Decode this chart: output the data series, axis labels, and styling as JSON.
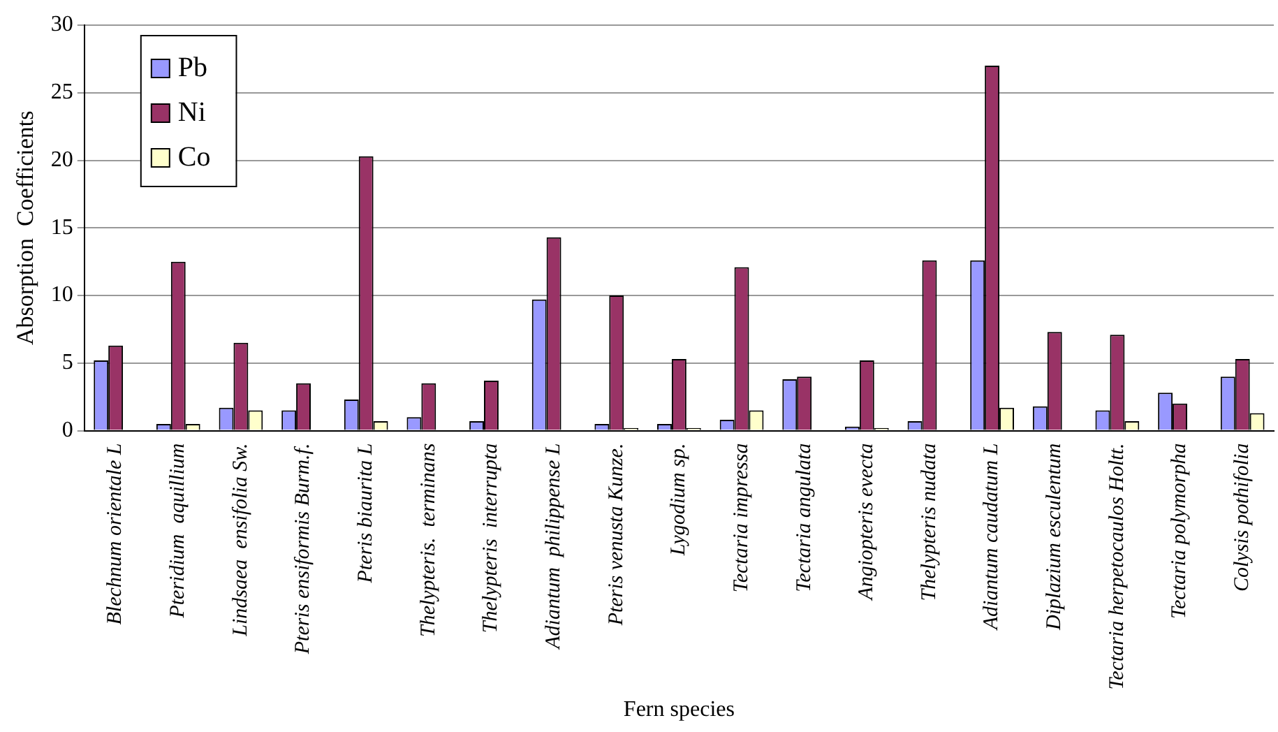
{
  "chart_data": {
    "type": "bar",
    "xlabel": "Fern species",
    "ylabel": "Absorption  Coefficients",
    "categories": [
      "Blechnum orientale L",
      "Pteridium  aquillium",
      "Lindsaea  ensifolia Sw.",
      "Pteris ensiformis Burm.f.",
      "Pteris biaurita L",
      "Thelypteris.  terminans",
      "Thelypteris  interrupta",
      "Adiantum  philippense L",
      "Pteris venusta Kunze.",
      "Lygodium sp.",
      "Tectaria impressa",
      "Tectaria angulata",
      "Angiopteris evecta",
      "Thelypteris nudata",
      "Adiantum caudatum L",
      "Diplazium esculentum",
      "Tectaria herpetocaulos Holtt.",
      "Tectaria polymorpha",
      "Colysis pothifolia"
    ],
    "series": [
      {
        "name": "Pb",
        "color": "#9999ff",
        "values": [
          5.2,
          0.5,
          1.7,
          1.5,
          2.3,
          1.0,
          0.7,
          9.7,
          0.5,
          0.5,
          0.8,
          3.8,
          0.3,
          0.7,
          12.6,
          1.8,
          1.5,
          2.8,
          4.0
        ]
      },
      {
        "name": "Ni",
        "color": "#993366",
        "values": [
          6.3,
          12.5,
          6.5,
          3.5,
          20.3,
          3.5,
          3.7,
          14.3,
          10.0,
          5.3,
          12.1,
          4.0,
          5.2,
          12.6,
          27.0,
          7.3,
          7.1,
          2.0,
          5.3
        ]
      },
      {
        "name": "Co",
        "color": "#ffffcc",
        "values": [
          0,
          0.5,
          1.5,
          0,
          0.7,
          0,
          0,
          0,
          0.2,
          0.2,
          1.5,
          0,
          0.2,
          0,
          1.7,
          0,
          0.7,
          0,
          1.3
        ]
      }
    ],
    "ylim": [
      0,
      30
    ],
    "yticks": [
      0,
      5,
      10,
      15,
      20,
      25,
      30
    ],
    "grid": "y",
    "legend": "top left"
  }
}
